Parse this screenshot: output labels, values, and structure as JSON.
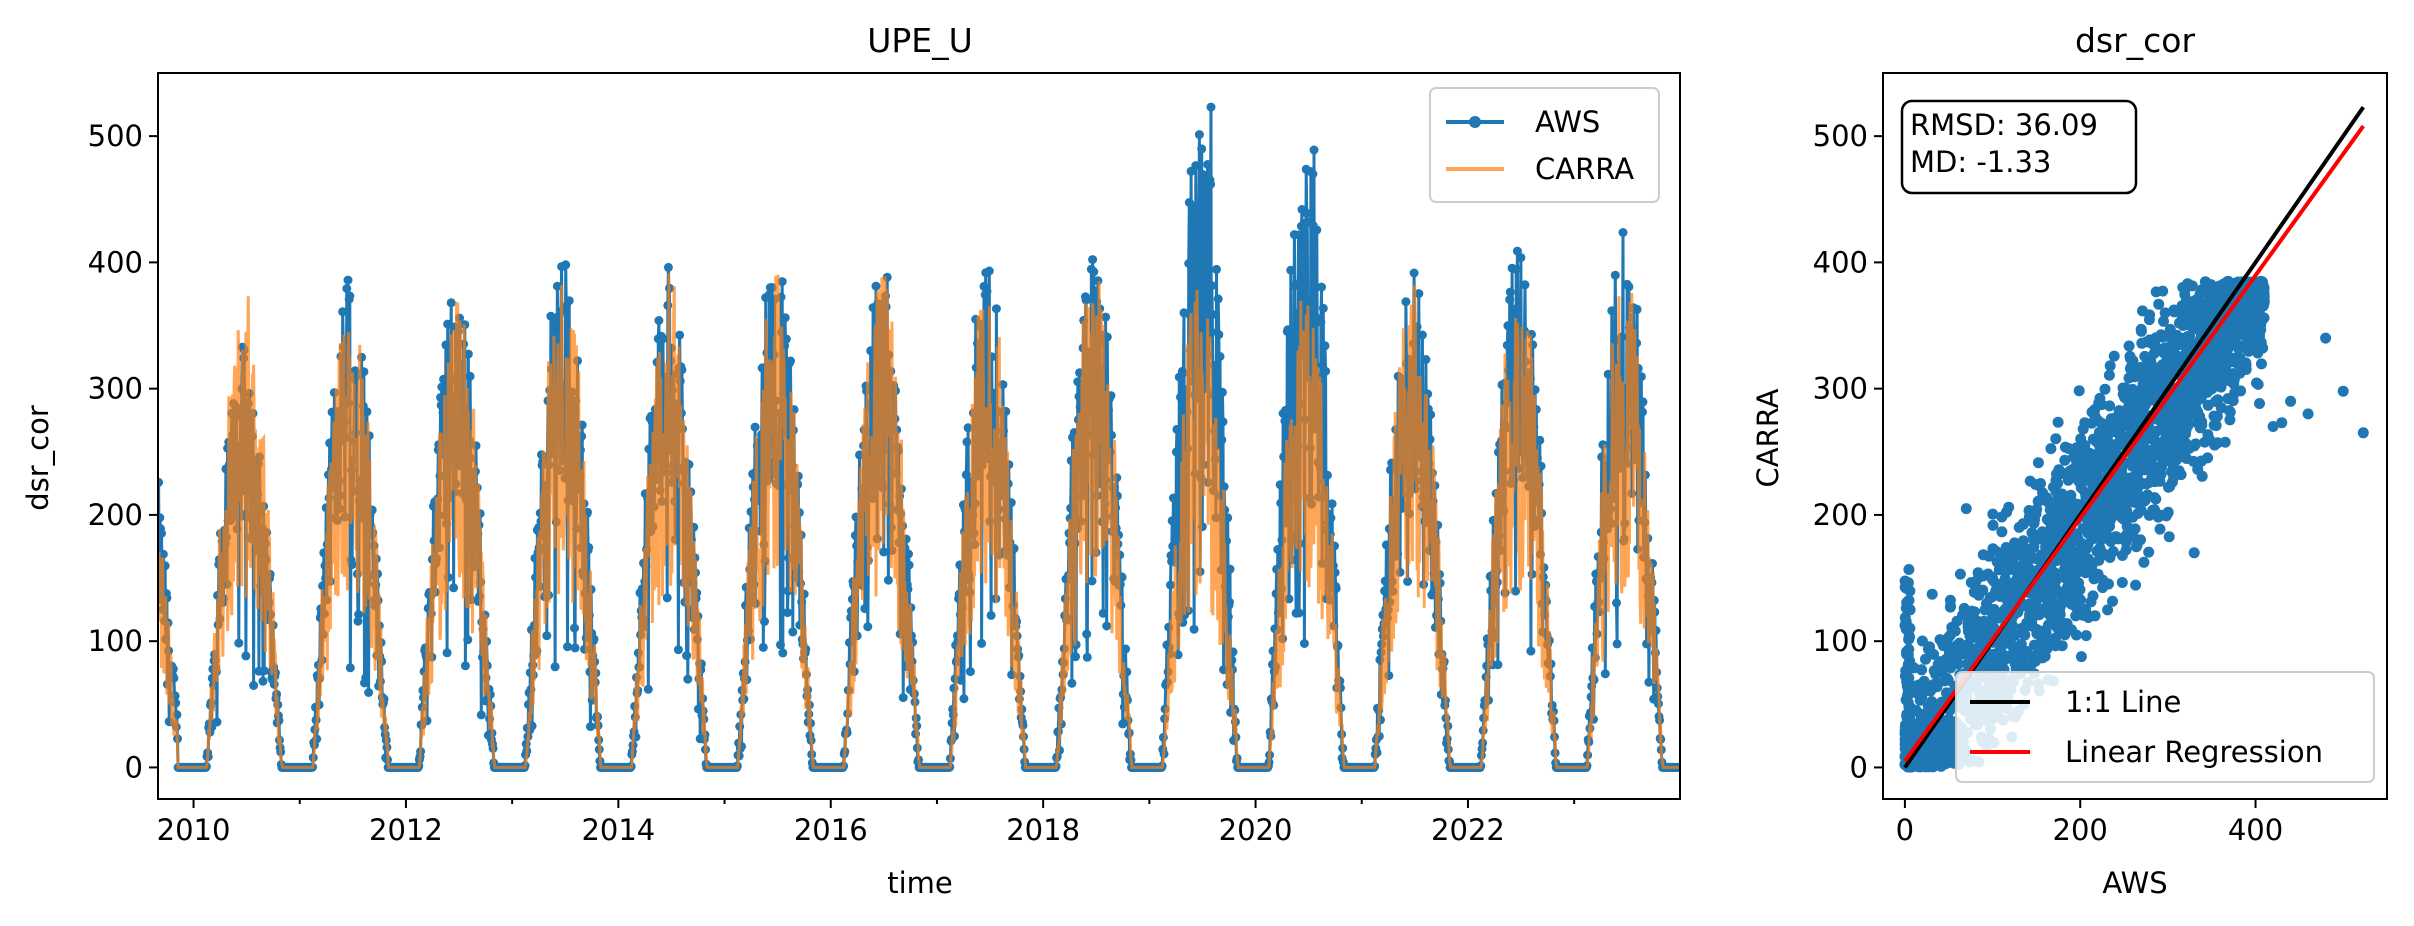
{
  "chart_data": [
    {
      "type": "line",
      "title": "UPE_U",
      "xlabel": "time",
      "ylabel": "dsr_cor",
      "xlim": [
        "2009-09-01",
        "2023-12-31"
      ],
      "ylim": [
        -25,
        550
      ],
      "x_ticks": [
        "2010",
        "2012",
        "2014",
        "2016",
        "2018",
        "2020",
        "2022"
      ],
      "y_ticks": [
        0,
        100,
        200,
        300,
        400,
        500
      ],
      "legend": {
        "position": "top-right",
        "entries": [
          "AWS",
          "CARRA"
        ]
      },
      "series": [
        {
          "name": "AWS",
          "color": "#1f77b4",
          "marker": "circle",
          "seasonal_peaks": [
            {
              "year": 2009,
              "peak": 232
            },
            {
              "year": 2010,
              "peak": 335
            },
            {
              "year": 2011,
              "peak": 393
            },
            {
              "year": 2012,
              "peak": 382
            },
            {
              "year": 2013,
              "peak": 405
            },
            {
              "year": 2014,
              "peak": 400
            },
            {
              "year": 2015,
              "peak": 408
            },
            {
              "year": 2016,
              "peak": 407
            },
            {
              "year": 2017,
              "peak": 402
            },
            {
              "year": 2018,
              "peak": 410
            },
            {
              "year": 2019,
              "peak": 523
            },
            {
              "year": 2020,
              "peak": 489
            },
            {
              "year": 2021,
              "peak": 395
            },
            {
              "year": 2022,
              "peak": 416
            },
            {
              "year": 2023,
              "peak": 428
            }
          ]
        },
        {
          "name": "CARRA",
          "color": "#ff7f0e",
          "seasonal_peaks": [
            {
              "year": 2010,
              "peak": 382
            },
            {
              "year": 2011,
              "peak": 386
            },
            {
              "year": 2012,
              "peak": 378
            },
            {
              "year": 2013,
              "peak": 395
            },
            {
              "year": 2014,
              "peak": 392
            },
            {
              "year": 2015,
              "peak": 395
            },
            {
              "year": 2016,
              "peak": 395
            },
            {
              "year": 2017,
              "peak": 393
            },
            {
              "year": 2018,
              "peak": 395
            },
            {
              "year": 2019,
              "peak": 390
            },
            {
              "year": 2020,
              "peak": 395
            },
            {
              "year": 2021,
              "peak": 393
            },
            {
              "year": 2022,
              "peak": 395
            },
            {
              "year": 2023,
              "peak": 395
            }
          ]
        }
      ]
    },
    {
      "type": "scatter",
      "title": "dsr_cor",
      "xlabel": "AWS",
      "ylabel": "CARRA",
      "xlim": [
        -25,
        550
      ],
      "ylim": [
        -25,
        550
      ],
      "x_ticks": [
        0,
        200,
        400
      ],
      "y_ticks": [
        0,
        100,
        200,
        300,
        400,
        500
      ],
      "annotation": [
        "RMSD: 36.09",
        "MD: -1.33"
      ],
      "legend": {
        "position": "lower-right",
        "entries": [
          "1:1 Line",
          "Linear Regression"
        ]
      },
      "points_color": "#1f77b4",
      "lines": [
        {
          "name": "1:1 Line",
          "color": "#000000",
          "from": [
            0,
            0
          ],
          "to": [
            523,
            523
          ]
        },
        {
          "name": "Linear Regression",
          "color": "#ff0000",
          "from": [
            0,
            5
          ],
          "to": [
            523,
            508
          ]
        }
      ],
      "outlier_points": [
        [
          523,
          265
        ],
        [
          480,
          340
        ],
        [
          500,
          298
        ],
        [
          440,
          290
        ],
        [
          420,
          270
        ],
        [
          430,
          273
        ],
        [
          460,
          280
        ],
        [
          70,
          205
        ],
        [
          330,
          170
        ]
      ]
    }
  ]
}
